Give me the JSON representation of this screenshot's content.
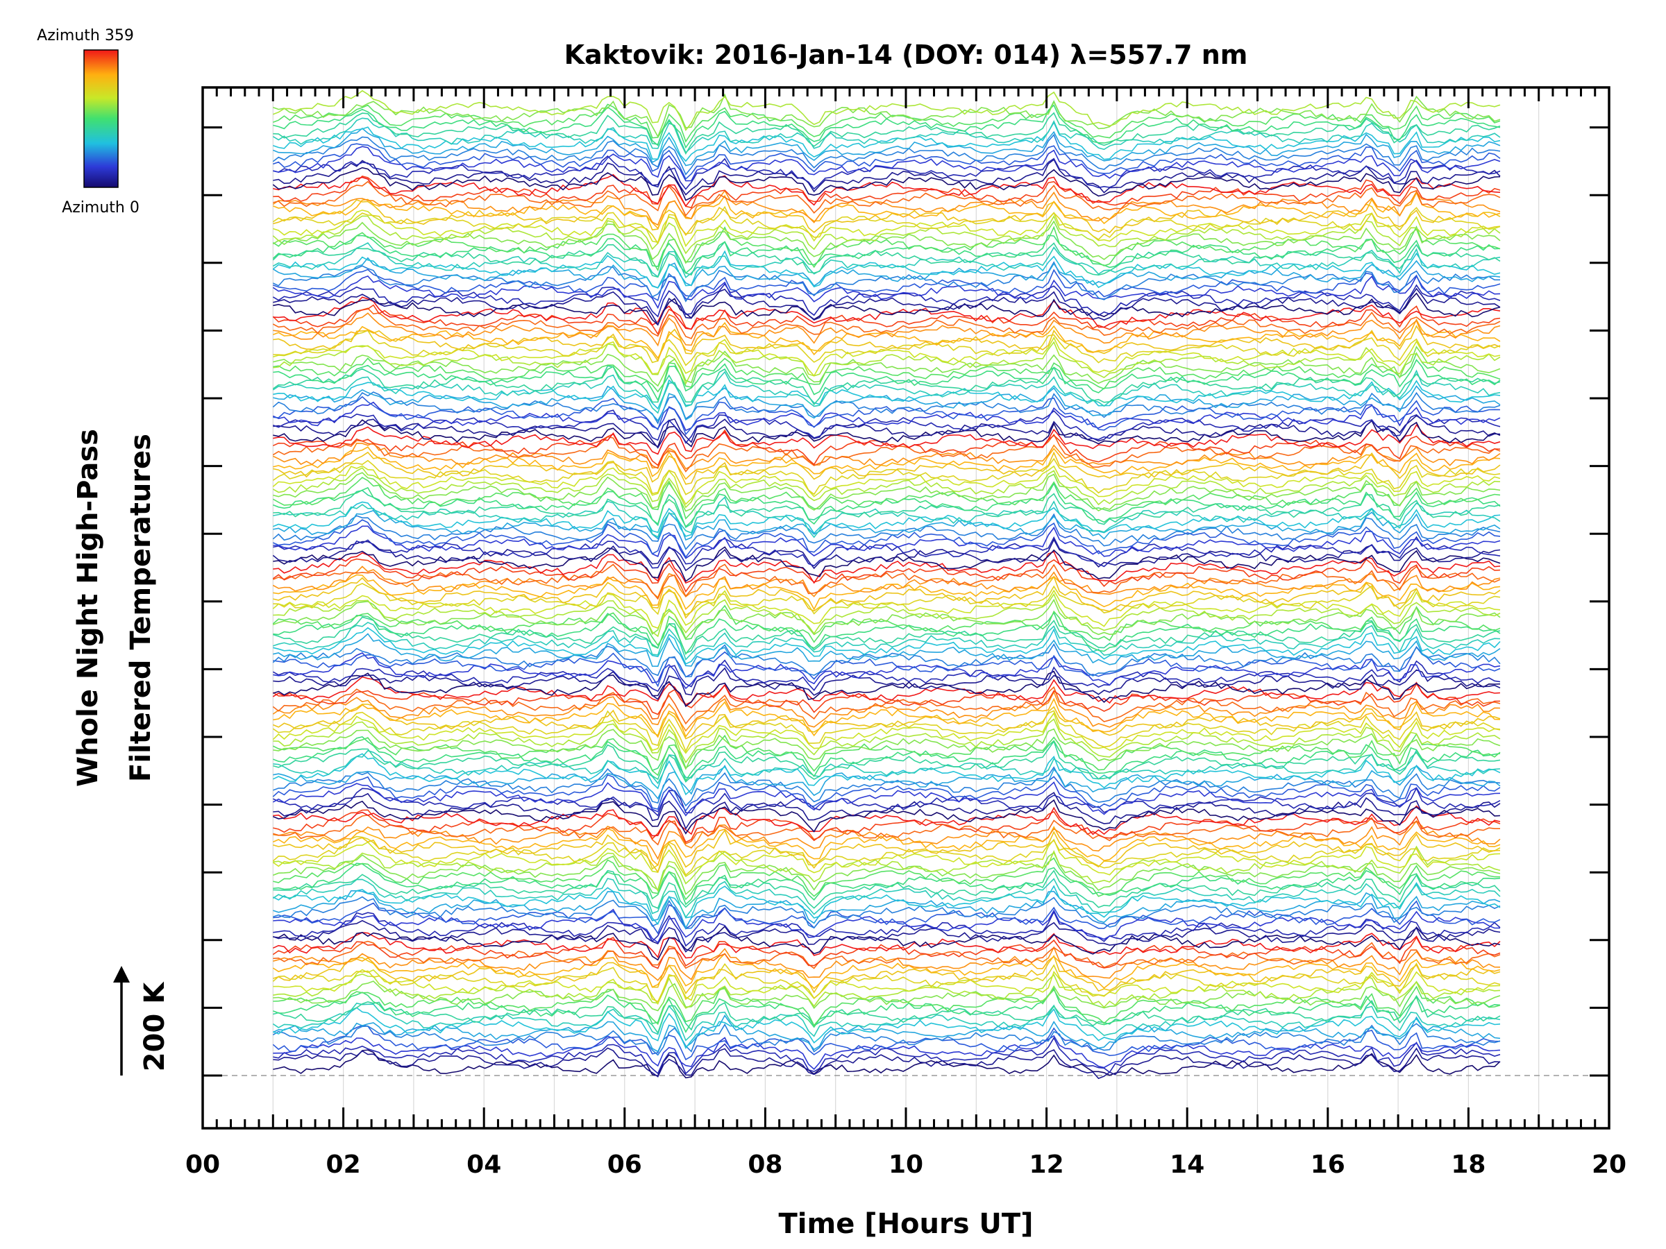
{
  "chart_data": {
    "type": "line",
    "title": "Kaktovik: 2016-Jan-14 (DOY: 014) λ=557.7 nm",
    "xlabel": "Time [Hours UT]",
    "ylabel_line1": "Whole Night High-Pass",
    "ylabel_line2": "Filtered Temperatures",
    "x_range": [
      0,
      20
    ],
    "x_tick_labels": [
      "00",
      "02",
      "04",
      "06",
      "08",
      "10",
      "12",
      "14",
      "16",
      "18",
      "20"
    ],
    "x_tick_values": [
      0,
      2,
      4,
      6,
      8,
      10,
      12,
      14,
      16,
      18,
      20
    ],
    "data_time_range": [
      1.0,
      18.45
    ],
    "scale_bar_label": "200 K",
    "colorbar": {
      "top_label": "Azimuth 359",
      "bottom_label": "Azimuth 0",
      "colormap": "rainbow",
      "range": [
        0,
        359
      ]
    },
    "stacked_group_count": 8,
    "grid": true,
    "colors": {
      "axis": "#000000",
      "grid": "#d9d9d9",
      "baseline": "#999999"
    }
  }
}
